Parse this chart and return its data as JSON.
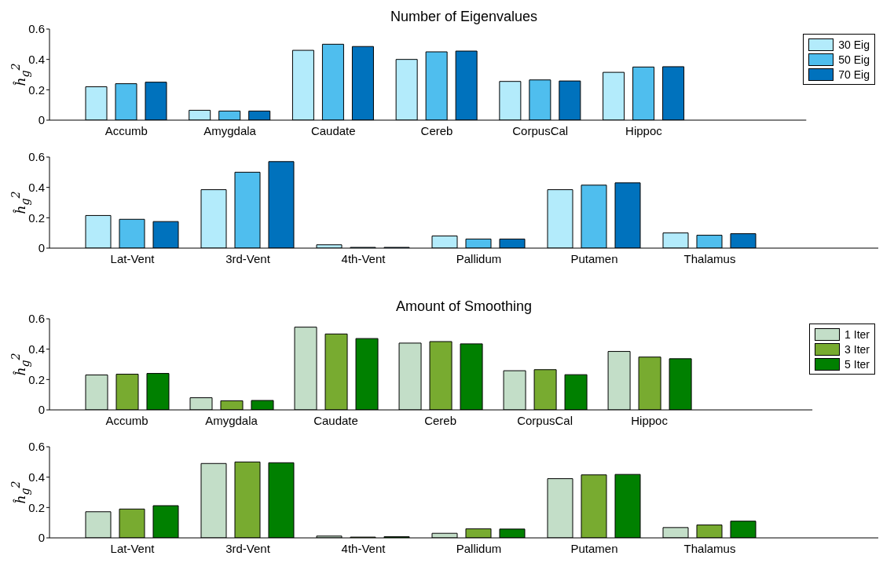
{
  "chart_data": [
    {
      "type": "bar",
      "title": "Number of Eigenvalues",
      "ylabel": "ĥ$_{g}$$^{2}$",
      "categories": [
        "Accumb",
        "Amygdala",
        "Caudate",
        "Cereb",
        "CorpusCal",
        "Hippoc"
      ],
      "ylim": [
        0,
        0.6
      ],
      "yticks": [
        0,
        0.2,
        0.4,
        0.6
      ],
      "legend": "top right",
      "series": [
        {
          "name": "30 Eig",
          "color": "#b3ebfb",
          "values": [
            0.22,
            0.065,
            0.46,
            0.4,
            0.255,
            0.315
          ]
        },
        {
          "name": "50 Eig",
          "color": "#4fbeee",
          "values": [
            0.24,
            0.06,
            0.5,
            0.45,
            0.265,
            0.35
          ]
        },
        {
          "name": "70 Eig",
          "color": "#0072bd",
          "values": [
            0.25,
            0.06,
            0.485,
            0.455,
            0.258,
            0.352
          ]
        }
      ]
    },
    {
      "type": "bar",
      "ylabel": "ĥ$_{g}$$^{2}$",
      "categories": [
        "Lat-Vent",
        "3rd-Vent",
        "4th-Vent",
        "Pallidum",
        "Putamen",
        "Thalamus"
      ],
      "ylim": [
        0,
        0.6
      ],
      "yticks": [
        0,
        0.2,
        0.4,
        0.6
      ],
      "series": [
        {
          "color": "#b3ebfb",
          "values": [
            0.215,
            0.385,
            0.022,
            0.08,
            0.385,
            0.1
          ]
        },
        {
          "color": "#4fbeee",
          "values": [
            0.19,
            0.5,
            0.005,
            0.06,
            0.415,
            0.085
          ]
        },
        {
          "color": "#0072bd",
          "values": [
            0.175,
            0.57,
            0.005,
            0.06,
            0.43,
            0.095
          ]
        }
      ]
    },
    {
      "type": "bar",
      "title": "Amount of Smoothing",
      "ylabel": "ĥ$_{g}$$^{2}$",
      "categories": [
        "Accumb",
        "Amygdala",
        "Caudate",
        "Cereb",
        "CorpusCal",
        "Hippoc"
      ],
      "ylim": [
        0,
        0.6
      ],
      "yticks": [
        0,
        0.2,
        0.4,
        0.6
      ],
      "legend": "top right",
      "series": [
        {
          "name": "1 Iter",
          "color": "#c3dec8",
          "values": [
            0.23,
            0.08,
            0.545,
            0.44,
            0.258,
            0.385
          ]
        },
        {
          "name": "3 Iter",
          "color": "#78ab30",
          "values": [
            0.235,
            0.06,
            0.5,
            0.45,
            0.265,
            0.348
          ]
        },
        {
          "name": "5 Iter",
          "color": "#008000",
          "values": [
            0.24,
            0.062,
            0.47,
            0.435,
            0.232,
            0.337
          ]
        }
      ]
    },
    {
      "type": "bar",
      "ylabel": "ĥ$_{g}$$^{2}$",
      "categories": [
        "Lat-Vent",
        "3rd-Vent",
        "4th-Vent",
        "Pallidum",
        "Putamen",
        "Thalamus"
      ],
      "ylim": [
        0,
        0.6
      ],
      "yticks": [
        0,
        0.2,
        0.4,
        0.6
      ],
      "series": [
        {
          "color": "#c3dec8",
          "values": [
            0.172,
            0.49,
            0.012,
            0.03,
            0.39,
            0.068
          ]
        },
        {
          "color": "#78ab30",
          "values": [
            0.19,
            0.5,
            0.005,
            0.06,
            0.415,
            0.085
          ]
        },
        {
          "color": "#008000",
          "values": [
            0.212,
            0.495,
            0.008,
            0.058,
            0.418,
            0.11
          ]
        }
      ]
    }
  ]
}
